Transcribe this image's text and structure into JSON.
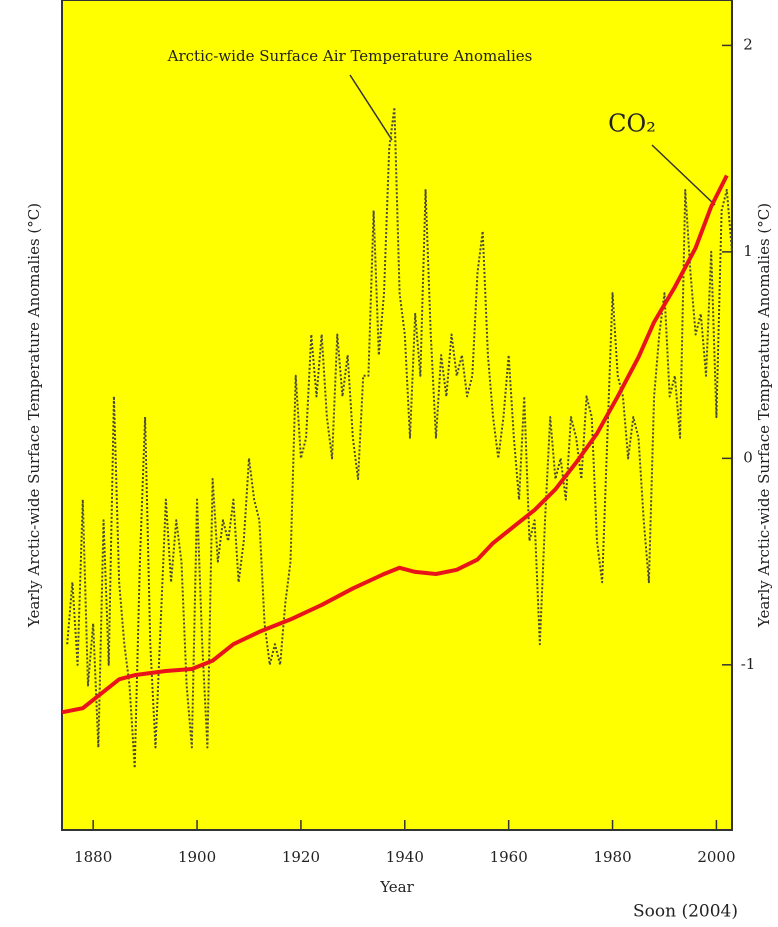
{
  "chart_data": {
    "type": "line",
    "y_label_left": "Yearly Arctic-wide Surface Temperature Anomalies (°C)",
    "y_label_right": "Yearly Arctic-wide Surface Temperature Anomalies (°C)",
    "x_label": "Year",
    "source": "Soon (2004)",
    "xlim": [
      1874,
      2003
    ],
    "xticks": [
      1880,
      1900,
      1920,
      1940,
      1960,
      1980,
      2000
    ],
    "ylim": [
      -1.8,
      2.22
    ],
    "yticks": [
      -1,
      0,
      1,
      2
    ],
    "background": "#ffff00",
    "series": [
      {
        "name": "Arctic-wide Surface Air Temperature Anomalies",
        "color": "#4a4a3a",
        "x": [
          1875,
          1876,
          1877,
          1878,
          1879,
          1880,
          1881,
          1882,
          1883,
          1884,
          1885,
          1886,
          1887,
          1888,
          1889,
          1890,
          1891,
          1892,
          1893,
          1894,
          1895,
          1896,
          1897,
          1898,
          1899,
          1900,
          1901,
          1902,
          1903,
          1904,
          1905,
          1906,
          1907,
          1908,
          1909,
          1910,
          1911,
          1912,
          1913,
          1914,
          1915,
          1916,
          1917,
          1918,
          1919,
          1920,
          1921,
          1922,
          1923,
          1924,
          1925,
          1926,
          1927,
          1928,
          1929,
          1930,
          1931,
          1932,
          1933,
          1934,
          1935,
          1936,
          1937,
          1938,
          1939,
          1940,
          1941,
          1942,
          1943,
          1944,
          1945,
          1946,
          1947,
          1948,
          1949,
          1950,
          1951,
          1952,
          1953,
          1954,
          1955,
          1956,
          1957,
          1958,
          1959,
          1960,
          1961,
          1962,
          1963,
          1964,
          1965,
          1966,
          1967,
          1968,
          1969,
          1970,
          1971,
          1972,
          1973,
          1974,
          1975,
          1976,
          1977,
          1978,
          1979,
          1980,
          1981,
          1982,
          1983,
          1984,
          1985,
          1986,
          1987,
          1988,
          1989,
          1990,
          1991,
          1992,
          1993,
          1994,
          1995,
          1996,
          1997,
          1998,
          1999,
          2000,
          2001,
          2002,
          2003
        ],
        "values": [
          -0.9,
          -0.6,
          -1.0,
          -0.2,
          -1.1,
          -0.8,
          -1.4,
          -0.3,
          -1.0,
          0.3,
          -0.6,
          -0.9,
          -1.1,
          -1.5,
          -0.5,
          0.2,
          -0.9,
          -1.4,
          -0.8,
          -0.2,
          -0.6,
          -0.3,
          -0.5,
          -1.1,
          -1.4,
          -0.2,
          -0.9,
          -1.4,
          -0.1,
          -0.5,
          -0.3,
          -0.4,
          -0.2,
          -0.6,
          -0.4,
          0.0,
          -0.2,
          -0.3,
          -0.8,
          -1.0,
          -0.9,
          -1.0,
          -0.7,
          -0.5,
          0.4,
          0.0,
          0.1,
          0.6,
          0.3,
          0.6,
          0.2,
          0.0,
          0.6,
          0.3,
          0.5,
          0.1,
          -0.1,
          0.4,
          0.4,
          1.2,
          0.5,
          0.8,
          1.5,
          1.7,
          0.8,
          0.6,
          0.1,
          0.7,
          0.4,
          1.3,
          0.6,
          0.1,
          0.5,
          0.3,
          0.6,
          0.4,
          0.5,
          0.3,
          0.4,
          0.9,
          1.1,
          0.5,
          0.2,
          0.0,
          0.2,
          0.5,
          0.1,
          -0.2,
          0.3,
          -0.4,
          -0.3,
          -0.9,
          -0.3,
          0.2,
          -0.1,
          0.0,
          -0.2,
          0.2,
          0.1,
          -0.1,
          0.3,
          0.2,
          -0.4,
          -0.6,
          0.1,
          0.8,
          0.4,
          0.3,
          0.0,
          0.2,
          0.1,
          -0.3,
          -0.6,
          0.3,
          0.6,
          0.8,
          0.3,
          0.4,
          0.1,
          1.3,
          0.9,
          0.6,
          0.7,
          0.4,
          1.0,
          0.2,
          1.2,
          1.3,
          1.0
        ],
        "dashed": true
      },
      {
        "name": "CO₂",
        "color": "#e8141a",
        "x": [
          1874,
          1878,
          1881,
          1885,
          1888,
          1894,
          1899,
          1903,
          1907,
          1912,
          1918,
          1924,
          1930,
          1936,
          1939,
          1942,
          1946,
          1950,
          1954,
          1957,
          1961,
          1965,
          1969,
          1973,
          1977,
          1981,
          1985,
          1988,
          1992,
          1996,
          1999,
          2002
        ],
        "values": [
          -1.23,
          -1.21,
          -1.15,
          -1.07,
          -1.05,
          -1.03,
          -1.02,
          -0.98,
          -0.9,
          -0.84,
          -0.78,
          -0.71,
          -0.63,
          -0.56,
          -0.53,
          -0.55,
          -0.56,
          -0.54,
          -0.49,
          -0.41,
          -0.33,
          -0.25,
          -0.15,
          -0.02,
          0.12,
          0.3,
          0.49,
          0.66,
          0.83,
          1.02,
          1.22,
          1.37
        ],
        "dashed": false
      }
    ]
  }
}
